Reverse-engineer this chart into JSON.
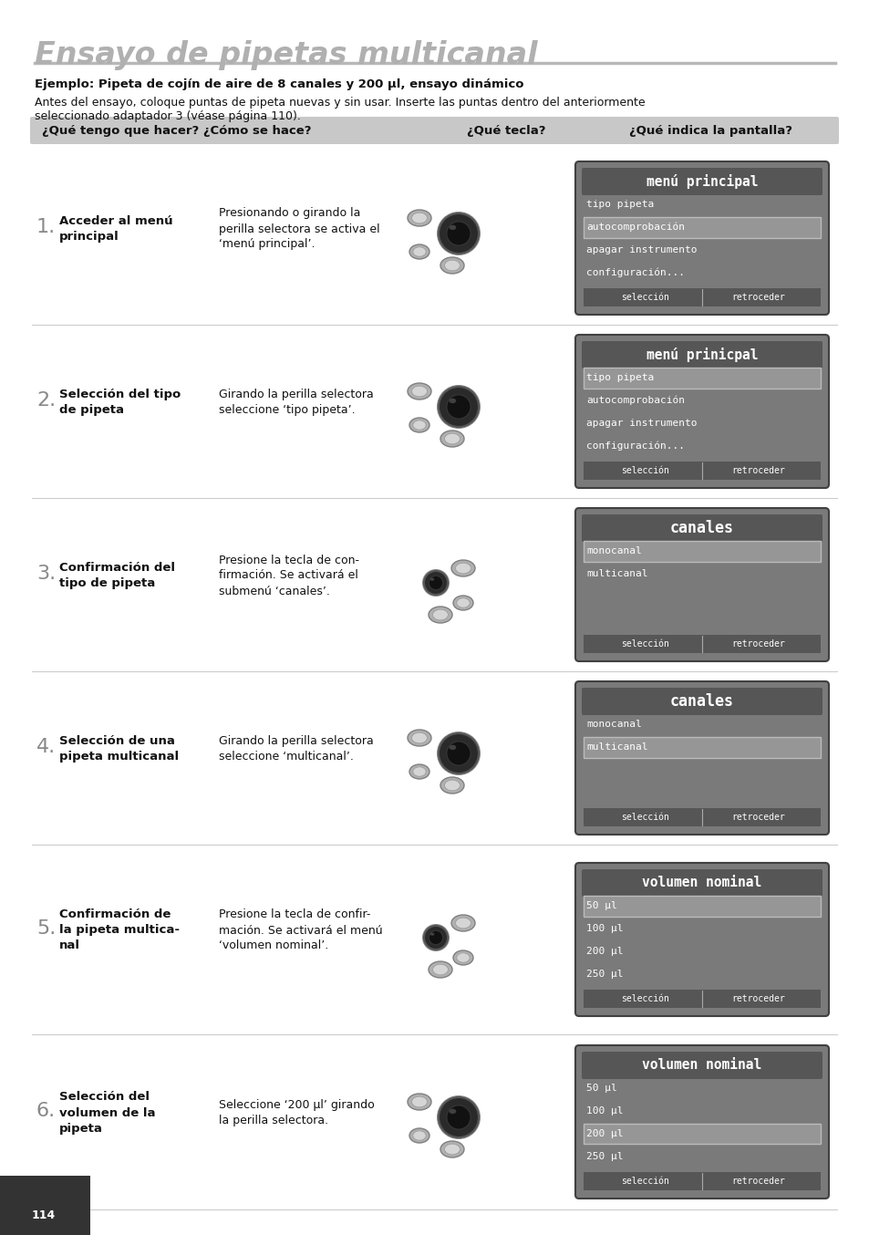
{
  "title": "Ensayo de pipetas multicanal",
  "subtitle_bold": "Ejemplo: Pipeta de cojín de aire de 8 canales y 200 µl, ensayo dinámico",
  "subtitle_line1": "Antes del ensayo, coloque puntas de pipeta nuevas y sin usar. Inserte las puntas dentro del anteriormente",
  "subtitle_line2": "seleccionado adaptador 3 (véase página 110).",
  "header_col1": "¿Qué tengo que hacer? ¿Cómo se hace?",
  "header_col2": "¿Qué tecla?",
  "header_col3": "¿Qué indica la pantalla?",
  "bg_color": "#ffffff",
  "page_number": "114",
  "steps": [
    {
      "number": "1.",
      "bold_text": "Acceder al menú\nprincipal",
      "description": "Presionando o girando la\nperilla selectora se activa el\n‘menú principal’.",
      "has_big_knob": true,
      "screen_title": "menú principal",
      "screen_lines": [
        "tipo pipeta",
        "autocomprobación",
        "apagar instrumento",
        "configuración..."
      ],
      "screen_footer": [
        "selección",
        "retroceder"
      ],
      "highlighted_line": 1
    },
    {
      "number": "2.",
      "bold_text": "Selección del tipo\nde pipeta",
      "description": "Girando la perilla selectora\nseleccione ‘tipo pipeta’.",
      "has_big_knob": true,
      "screen_title": "menú prinicpal",
      "screen_lines": [
        "tipo pipeta",
        "autocomprobación",
        "apagar instrumento",
        "configuración..."
      ],
      "screen_footer": [
        "selección",
        "retroceder"
      ],
      "highlighted_line": 0
    },
    {
      "number": "3.",
      "bold_text": "Confirmación del\ntipo de pipeta",
      "description": "Presione la tecla de con-\nfirmación. Se activará el\nsubmenú ‘canales’.",
      "has_big_knob": false,
      "screen_title": "canales",
      "screen_lines": [
        "monocanal",
        "multicanal",
        "",
        ""
      ],
      "screen_footer": [
        "selección",
        "retroceder"
      ],
      "highlighted_line": 0
    },
    {
      "number": "4.",
      "bold_text": "Selección de una\npipeta multicanal",
      "description": "Girando la perilla selectora\nseleccione ‘multicanal’.",
      "has_big_knob": true,
      "screen_title": "canales",
      "screen_lines": [
        "monocanal",
        "multicanal",
        "",
        ""
      ],
      "screen_footer": [
        "selección",
        "retroceder"
      ],
      "highlighted_line": 1
    },
    {
      "number": "5.",
      "bold_text": "Confirmación de\nla pipeta multica-\nnal",
      "description": "Presione la tecla de confir-\nmación. Se activará el menú\n‘volumen nominal’.",
      "has_big_knob": false,
      "screen_title": "volumen nominal",
      "screen_lines": [
        "50 µl",
        "100 µl",
        "200 µl",
        "250 µl"
      ],
      "screen_footer": [
        "selección",
        "retroceder"
      ],
      "highlighted_line": 0
    },
    {
      "number": "6.",
      "bold_text": "Selección del\nvolumen de la\npipeta",
      "description": "Seleccione ‘200 µl’ girando\nla perilla selectora.",
      "has_big_knob": true,
      "screen_title": "volumen nominal",
      "screen_lines": [
        "50 µl",
        "100 µl",
        "200 µl",
        "250 µl"
      ],
      "screen_footer": [
        "selección",
        "retroceder"
      ],
      "highlighted_line": 2
    }
  ]
}
